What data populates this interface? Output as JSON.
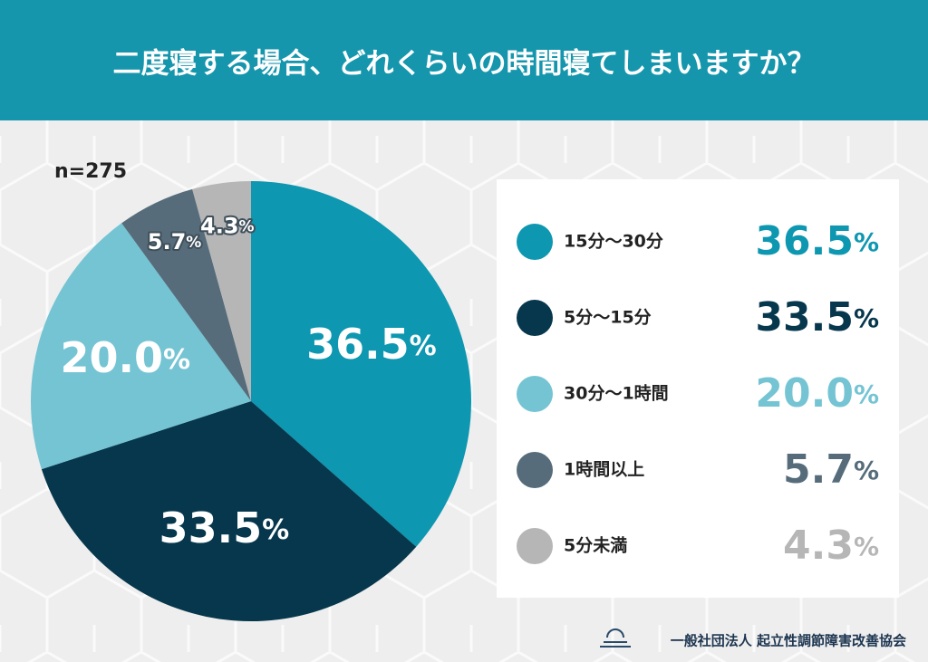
{
  "chart_data": {
    "type": "pie",
    "title": "二度寝する場合、どれくらいの時間寝てしまいますか？",
    "note": "n=275",
    "categories": [
      "15分～30分",
      "5分～15分",
      "30分～1時間",
      "1時間以上",
      "5分未満"
    ],
    "values": [
      36.5,
      33.5,
      20.0,
      5.7,
      4.3
    ],
    "value_labels": [
      "36.5%",
      "33.5%",
      "20.0%",
      "5.7%",
      "4.3%"
    ],
    "colors": [
      "#0d97b0",
      "#06374d",
      "#74c4d3",
      "#566c7a",
      "#b6b6b6"
    ]
  },
  "footer": {
    "organization": "一般社団法人 起立性調節障害改善協会"
  }
}
